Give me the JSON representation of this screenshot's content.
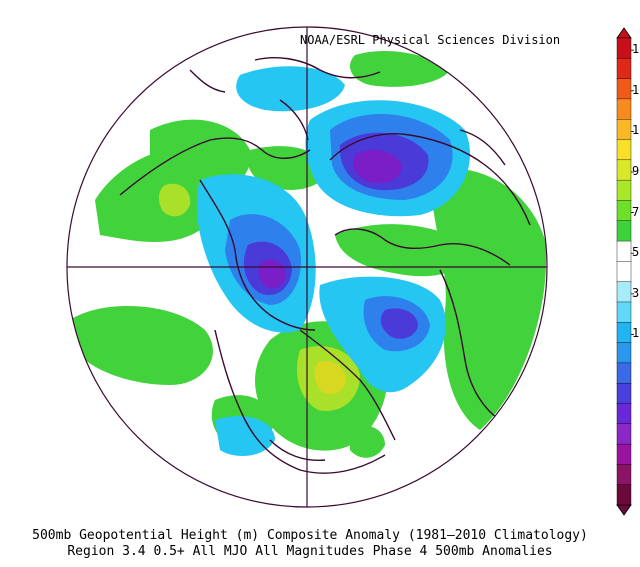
{
  "credit": "NOAA/ESRL Physical Sciences Division",
  "caption_line1": "500mb Geopotential Height (m) Composite Anomaly (1981–2010 Climatology)",
  "caption_line2": "Region 3.4 0.5+ All MJO All Magnitudes  Phase 4 500mb Anomalies",
  "colorbar": {
    "top_labels": [
      "1",
      "1",
      "1",
      "9",
      "7",
      "5",
      "3",
      "1"
    ],
    "colors": [
      "#6b0a3a",
      "#8a1466",
      "#9a14a0",
      "#8a28c8",
      "#6a28d8",
      "#4a40e0",
      "#3a6ae8",
      "#2a96ec",
      "#20b4f0",
      "#60d8f8",
      "#a8ecfc",
      "#ffffff",
      "#ffffff",
      "#3ed23c",
      "#6ee02a",
      "#a8e828",
      "#d8e828",
      "#f8e028",
      "#f8b828",
      "#f88a20",
      "#f05a18",
      "#e02818",
      "#c8101a"
    ]
  },
  "map": {
    "projection": "polar-stereographic",
    "colors": {
      "strong_negative": "#7a1ec8",
      "negative_deep": "#4a3ad8",
      "negative_mid": "#2e80ec",
      "negative_light": "#26c6f2",
      "negative_faint": "#a0ecfb",
      "positive_light": "#42d23c",
      "positive_mid": "#a8e02a",
      "positive_strong": "#d8d820",
      "outline": "#3a0a30"
    }
  }
}
